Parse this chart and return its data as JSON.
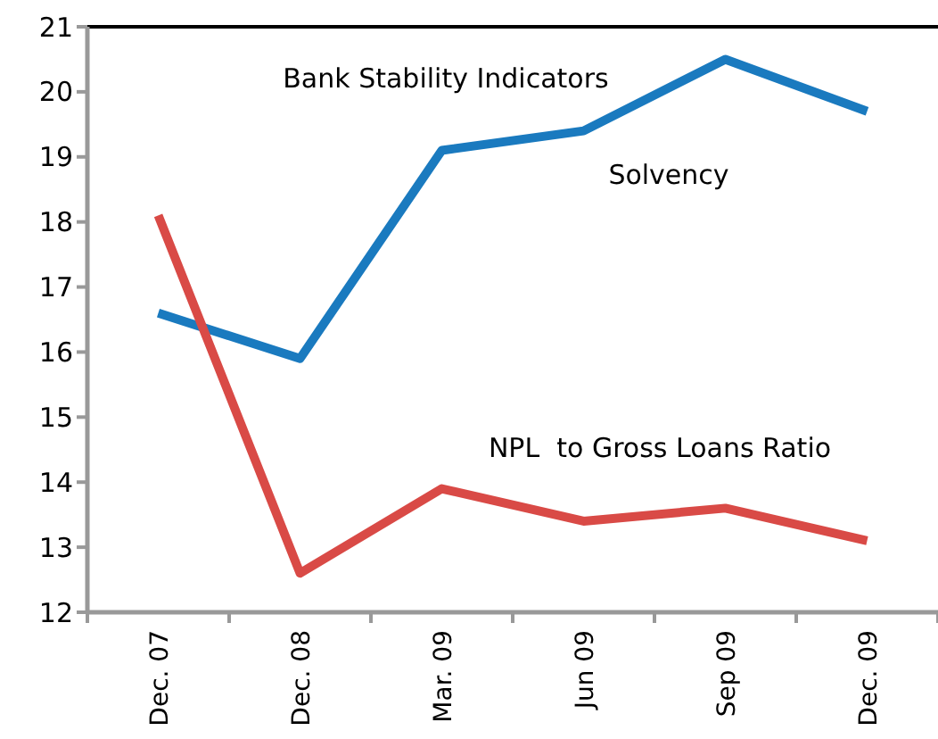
{
  "chart_data": {
    "type": "line",
    "title": "Bank Stability Indicators",
    "categories": [
      "Dec. 07",
      "Dec. 08",
      "Mar. 09",
      "Jun 09",
      "Sep 09",
      "Dec. 09"
    ],
    "series": [
      {
        "name": "Solvency",
        "color": "#1a7abf",
        "values": [
          16.6,
          15.9,
          19.1,
          19.4,
          20.5,
          19.7
        ]
      },
      {
        "name": "NPL  to Gross Loans Ratio",
        "color": "#d94a46",
        "values": [
          18.1,
          12.6,
          13.9,
          13.4,
          13.6,
          13.1
        ]
      }
    ],
    "ylim": [
      12,
      21
    ],
    "yticks": [
      12,
      13,
      14,
      15,
      16,
      17,
      18,
      19,
      20,
      21
    ],
    "grid": false,
    "marker": "none",
    "line_style": "solid"
  }
}
